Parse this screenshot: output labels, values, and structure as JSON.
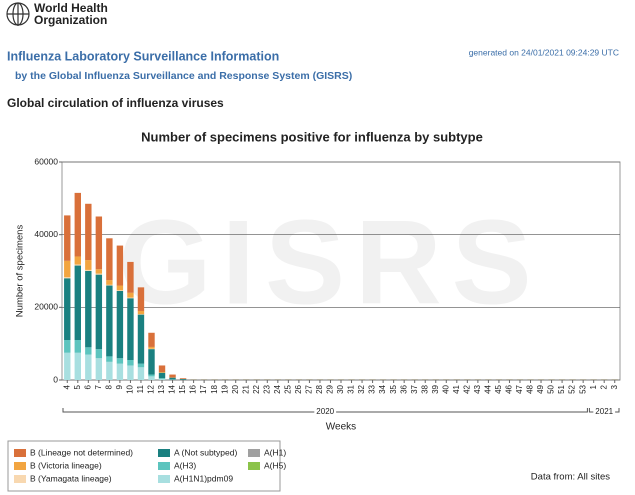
{
  "logo": {
    "line1": "World Health",
    "line2": "Organization"
  },
  "header": {
    "title": "Influenza Laboratory Surveillance Information",
    "subtitle": "by the Global Influenza Surveillance and Response System (GISRS)",
    "generated": "generated on 24/01/2021 09:24:29 UTC"
  },
  "section_title": "Global circulation of influenza viruses",
  "chart_data": {
    "type": "stacked_bar",
    "title": "Number of specimens positive for influenza by subtype",
    "watermark": "GISRS",
    "y_label": "Number of specimens",
    "x_label": "Weeks",
    "years": [
      "2020",
      "2021"
    ],
    "categories": [
      "4",
      "5",
      "6",
      "7",
      "8",
      "9",
      "10",
      "11",
      "12",
      "13",
      "14",
      "15",
      "16",
      "17",
      "18",
      "19",
      "20",
      "21",
      "22",
      "23",
      "24",
      "25",
      "26",
      "27",
      "28",
      "29",
      "30",
      "31",
      "32",
      "33",
      "34",
      "35",
      "36",
      "37",
      "38",
      "39",
      "40",
      "41",
      "42",
      "43",
      "44",
      "45",
      "46",
      "47",
      "48",
      "49",
      "50",
      "51",
      "52",
      "53",
      "1",
      "2",
      "3"
    ],
    "ylim": [
      0,
      60000
    ],
    "yticks": [
      0,
      20000,
      40000,
      60000
    ],
    "grid": true,
    "series": [
      {
        "name": "A(H1N1)pdm09",
        "color": "#a8dfe0",
        "values": [
          7500,
          7500,
          7000,
          6000,
          5000,
          4500,
          4000,
          3500,
          1000,
          300,
          100,
          50,
          20,
          20,
          20,
          20,
          20,
          20,
          20,
          20,
          20,
          20,
          20,
          20,
          20,
          20,
          20,
          20,
          20,
          20,
          20,
          20,
          20,
          20,
          20,
          20,
          20,
          20,
          20,
          20,
          20,
          20,
          20,
          20,
          20,
          20,
          20,
          20,
          20,
          20,
          20,
          20,
          20
        ]
      },
      {
        "name": "A(H3)",
        "color": "#5cc4be",
        "values": [
          3500,
          3500,
          2000,
          2500,
          1500,
          1500,
          1500,
          1000,
          500,
          200,
          50,
          20,
          20,
          20,
          20,
          20,
          20,
          20,
          20,
          20,
          20,
          20,
          20,
          20,
          20,
          20,
          20,
          20,
          20,
          20,
          20,
          20,
          20,
          20,
          20,
          20,
          20,
          20,
          20,
          20,
          20,
          20,
          20,
          20,
          20,
          20,
          20,
          20,
          20,
          20,
          20,
          20,
          20
        ]
      },
      {
        "name": "A (Not subtyped)",
        "color": "#1a8080",
        "values": [
          17000,
          20500,
          21000,
          20500,
          19500,
          18500,
          17000,
          13500,
          7000,
          1500,
          500,
          200,
          60,
          60,
          60,
          60,
          60,
          60,
          60,
          60,
          60,
          60,
          60,
          60,
          60,
          60,
          60,
          60,
          60,
          60,
          60,
          60,
          60,
          60,
          60,
          60,
          60,
          60,
          60,
          60,
          60,
          60,
          60,
          60,
          60,
          60,
          60,
          60,
          60,
          60,
          60,
          60,
          60
        ]
      },
      {
        "name": "A(H1)",
        "color": "#a0a0a0",
        "values": [
          0,
          0,
          0,
          0,
          0,
          0,
          0,
          0,
          0,
          0,
          0,
          0,
          0,
          0,
          0,
          0,
          0,
          0,
          0,
          0,
          0,
          0,
          0,
          0,
          0,
          0,
          0,
          0,
          0,
          0,
          0,
          0,
          0,
          0,
          0,
          0,
          0,
          0,
          0,
          0,
          0,
          0,
          0,
          0,
          0,
          0,
          0,
          0,
          0,
          0,
          0,
          0,
          0
        ]
      },
      {
        "name": "A(H5)",
        "color": "#8bc34a",
        "values": [
          0,
          0,
          0,
          0,
          0,
          0,
          0,
          0,
          0,
          0,
          0,
          0,
          0,
          0,
          0,
          0,
          0,
          0,
          0,
          0,
          0,
          0,
          0,
          0,
          0,
          0,
          0,
          0,
          0,
          0,
          0,
          0,
          0,
          0,
          0,
          0,
          0,
          0,
          0,
          0,
          0,
          0,
          0,
          0,
          0,
          0,
          0,
          0,
          0,
          0,
          0,
          0,
          0
        ]
      },
      {
        "name": "B (Yamagata lineage)",
        "color": "#f8d8b0",
        "values": [
          300,
          300,
          300,
          300,
          200,
          200,
          200,
          100,
          100,
          0,
          0,
          0,
          0,
          0,
          0,
          0,
          0,
          0,
          0,
          0,
          0,
          0,
          0,
          0,
          0,
          0,
          0,
          0,
          0,
          0,
          0,
          0,
          0,
          0,
          0,
          0,
          0,
          0,
          0,
          0,
          0,
          0,
          0,
          0,
          0,
          0,
          0,
          0,
          0,
          0,
          0,
          0,
          0
        ]
      },
      {
        "name": "B (Victoria lineage)",
        "color": "#f2a540",
        "values": [
          4500,
          2200,
          2700,
          1200,
          1300,
          1300,
          1300,
          900,
          500,
          200,
          50,
          30,
          10,
          10,
          10,
          10,
          10,
          10,
          10,
          10,
          10,
          10,
          10,
          10,
          10,
          10,
          10,
          10,
          10,
          10,
          10,
          10,
          10,
          10,
          10,
          10,
          10,
          10,
          10,
          10,
          10,
          10,
          10,
          10,
          10,
          10,
          10,
          10,
          10,
          10,
          10,
          10,
          10
        ]
      },
      {
        "name": "B (Lineage not determined)",
        "color": "#d9703a",
        "values": [
          12500,
          17500,
          15500,
          14500,
          11500,
          11000,
          8500,
          6500,
          3900,
          1800,
          800,
          200,
          60,
          60,
          60,
          60,
          60,
          60,
          60,
          60,
          60,
          60,
          60,
          60,
          60,
          60,
          60,
          60,
          60,
          60,
          60,
          60,
          60,
          60,
          60,
          60,
          60,
          60,
          60,
          60,
          60,
          60,
          60,
          60,
          60,
          60,
          60,
          60,
          60,
          60,
          60,
          60,
          60
        ]
      }
    ],
    "source_note": "Data from: All sites"
  }
}
